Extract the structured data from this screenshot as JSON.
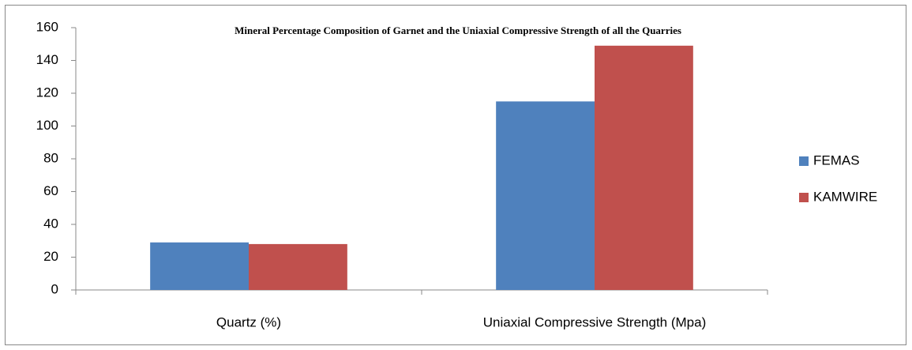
{
  "chart_data": {
    "type": "bar",
    "title": "Mineral Percentage Composition of Garnet and the Uniaxial Compressive Strength of all the Quarries",
    "categories": [
      "Quartz (%)",
      "Uniaxial Compressive Strength (Mpa)"
    ],
    "series": [
      {
        "name": "FEMAS",
        "color": "#4f81bd",
        "values": [
          29,
          115
        ]
      },
      {
        "name": "KAMWIRE",
        "color": "#c0504d",
        "values": [
          28,
          149
        ]
      }
    ],
    "ylim": [
      0,
      160
    ],
    "yticks": [
      0,
      20,
      40,
      60,
      80,
      100,
      120,
      140,
      160
    ],
    "grid": false,
    "legend": "right"
  }
}
